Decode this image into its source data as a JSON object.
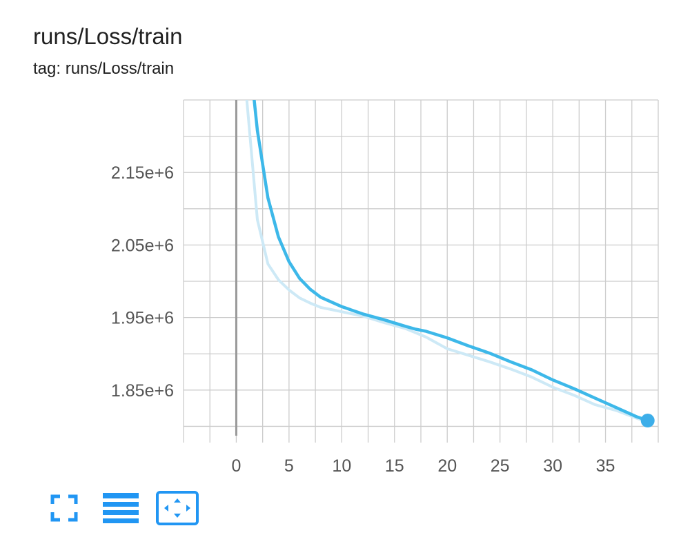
{
  "header": {
    "title": "runs/Loss/train",
    "subtitle": "tag: runs/Loss/train"
  },
  "toolbar": {
    "buttons": [
      {
        "icon": "fullscreen-icon"
      },
      {
        "icon": "toggle-y-axis-log-scale-icon"
      },
      {
        "icon": "fit-domain-to-data-icon"
      }
    ]
  },
  "colors": {
    "accent": "#3daee9",
    "smoothed": "#3db8e9",
    "raw": "#cde9f6",
    "grid": "#cccccc",
    "zero_axis": "#999999",
    "tick_text": "#555555"
  },
  "chart_data": {
    "type": "line",
    "title": "runs/Loss/train",
    "xlabel": "",
    "ylabel": "",
    "xlim": [
      -5,
      40
    ],
    "ylim": [
      1789000.0,
      2250000.0
    ],
    "x_ticks": [
      0,
      5,
      10,
      15,
      20,
      25,
      30,
      35
    ],
    "x_tick_labels": [
      "0",
      "5",
      "10",
      "15",
      "20",
      "25",
      "30",
      "35"
    ],
    "y_ticks": [
      1850000.0,
      1950000.0,
      2050000.0,
      2150000.0
    ],
    "y_tick_labels": [
      "1.85e+6",
      "1.95e+6",
      "2.05e+6",
      "2.15e+6"
    ],
    "grid": true,
    "series": [
      {
        "role": "raw",
        "x": [
          1,
          2,
          3,
          4,
          5,
          6,
          7,
          8,
          9,
          10,
          12,
          14,
          16,
          17,
          18,
          20,
          22,
          24,
          26,
          28,
          30,
          32,
          34,
          36,
          38,
          39
        ],
        "y": [
          2250000.0,
          2085000.0,
          2024000.0,
          2002000.0,
          1988000.0,
          1977000.0,
          1970000.0,
          1964000.0,
          1961000.0,
          1958000.0,
          1952000.0,
          1943000.0,
          1935000.0,
          1929000.0,
          1923000.0,
          1907000.0,
          1898000.0,
          1889000.0,
          1879000.0,
          1868000.0,
          1854000.0,
          1843000.0,
          1830000.0,
          1822000.0,
          1811000.0,
          1806000.0
        ]
      },
      {
        "role": "smoothed",
        "x": [
          1.7,
          2,
          3,
          4,
          5,
          6,
          7,
          8,
          10,
          12,
          14,
          16,
          17,
          18,
          20,
          22,
          24,
          26,
          28,
          30,
          32,
          34,
          36,
          38,
          39
        ],
        "y": [
          2250000.0,
          2208000.0,
          2115000.0,
          2061000.0,
          2027000.0,
          2004000.0,
          1989000.0,
          1978000.0,
          1965000.0,
          1955000.0,
          1947000.0,
          1938000.0,
          1934000.0,
          1931000.0,
          1922000.0,
          1911000.0,
          1901000.0,
          1889000.0,
          1878000.0,
          1864000.0,
          1852000.0,
          1839000.0,
          1826000.0,
          1813000.0,
          1808000.0
        ]
      }
    ]
  }
}
